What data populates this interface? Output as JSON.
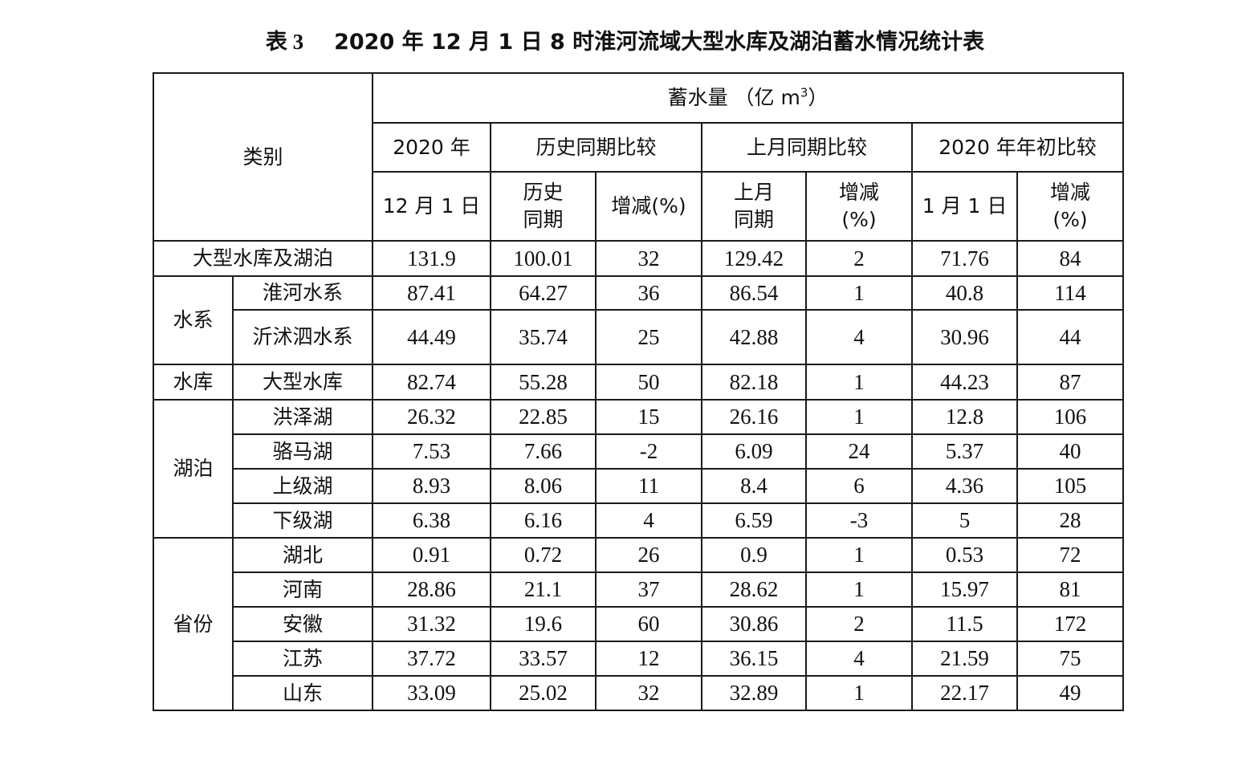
{
  "title": {
    "label": "表 3",
    "text": "2020 年 12 月 1 日 8 时淮河流域大型水库及湖泊蓄水情况统计表"
  },
  "header": {
    "category": "类别",
    "storage_prefix": "蓄水量 （亿 m",
    "storage_sup": "3",
    "storage_suffix": "）",
    "groups": [
      "2020 年",
      "历史同期比较",
      "上月同期比较",
      "2020 年年初比较"
    ],
    "sub": {
      "dec1": "12 月 1 日",
      "hist_l1": "历史",
      "hist_l2": "同期",
      "hist_change": "增减(%)",
      "lastmonth_l1": "上月",
      "lastmonth_l2": "同期",
      "lm_change_l1": "增减",
      "lm_change_l2": "(%)",
      "jan1": "1 月 1 日",
      "jan_change_l1": "增减",
      "jan_change_l2": "(%)"
    }
  },
  "total": {
    "label": "大型水库及湖泊",
    "values": [
      "131.9",
      "100.01",
      "32",
      "129.42",
      "2",
      "71.76",
      "84"
    ]
  },
  "groups": {
    "water_system": {
      "label": "水系",
      "rows": [
        {
          "name": "淮河水系",
          "values": [
            "87.41",
            "64.27",
            "36",
            "86.54",
            "1",
            "40.8",
            "114"
          ]
        },
        {
          "name": "沂沭泗水系",
          "values": [
            "44.49",
            "35.74",
            "25",
            "42.88",
            "4",
            "30.96",
            "44"
          ]
        }
      ]
    },
    "reservoir": {
      "label": "水库",
      "rows": [
        {
          "name": "大型水库",
          "values": [
            "82.74",
            "55.28",
            "50",
            "82.18",
            "1",
            "44.23",
            "87"
          ]
        }
      ]
    },
    "lakes": {
      "label": "湖泊",
      "rows": [
        {
          "name": "洪泽湖",
          "values": [
            "26.32",
            "22.85",
            "15",
            "26.16",
            "1",
            "12.8",
            "106"
          ]
        },
        {
          "name": "骆马湖",
          "values": [
            "7.53",
            "7.66",
            "-2",
            "6.09",
            "24",
            "5.37",
            "40"
          ]
        },
        {
          "name": "上级湖",
          "values": [
            "8.93",
            "8.06",
            "11",
            "8.4",
            "6",
            "4.36",
            "105"
          ]
        },
        {
          "name": "下级湖",
          "values": [
            "6.38",
            "6.16",
            "4",
            "6.59",
            "-3",
            "5",
            "28"
          ]
        }
      ]
    },
    "provinces": {
      "label": "省份",
      "rows": [
        {
          "name": "湖北",
          "values": [
            "0.91",
            "0.72",
            "26",
            "0.9",
            "1",
            "0.53",
            "72"
          ]
        },
        {
          "name": "河南",
          "values": [
            "28.86",
            "21.1",
            "37",
            "28.62",
            "1",
            "15.97",
            "81"
          ]
        },
        {
          "name": "安徽",
          "values": [
            "31.32",
            "19.6",
            "60",
            "30.86",
            "2",
            "11.5",
            "172"
          ]
        },
        {
          "name": "江苏",
          "values": [
            "37.72",
            "33.57",
            "12",
            "36.15",
            "4",
            "21.59",
            "75"
          ]
        },
        {
          "name": "山东",
          "values": [
            "33.09",
            "25.02",
            "32",
            "32.89",
            "1",
            "22.17",
            "49"
          ]
        }
      ]
    }
  }
}
